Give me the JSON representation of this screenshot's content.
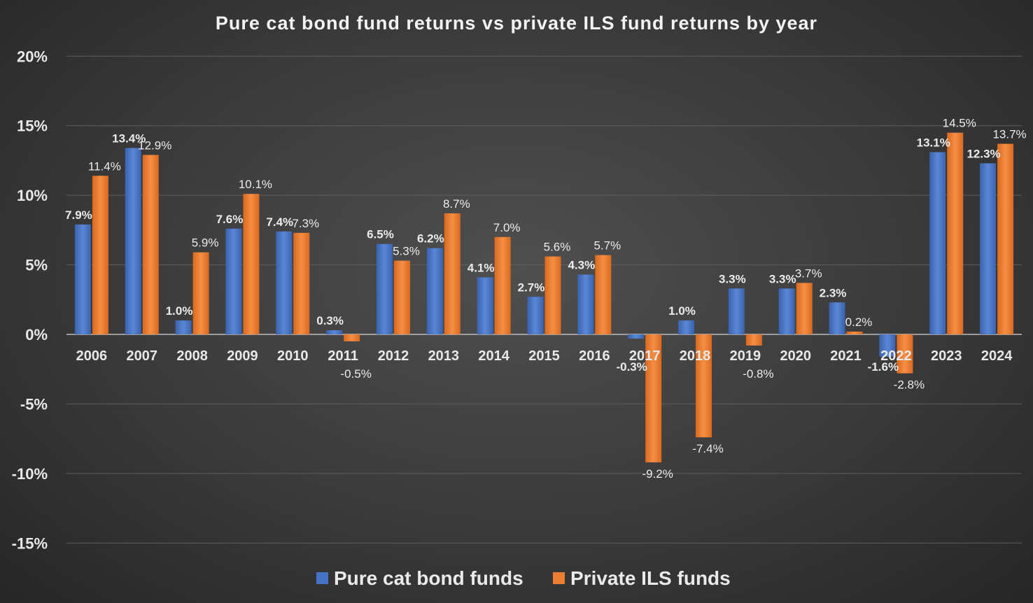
{
  "chart_data": {
    "type": "bar",
    "title": "Pure cat bond fund returns vs private ILS fund returns by year",
    "categories": [
      "2006",
      "2007",
      "2008",
      "2009",
      "2010",
      "2011",
      "2012",
      "2013",
      "2014",
      "2015",
      "2016",
      "2017",
      "2018",
      "2019",
      "2020",
      "2021",
      "2022",
      "2023",
      "2024"
    ],
    "series": [
      {
        "name": "Pure cat bond funds",
        "color": "#4472c4",
        "values": [
          7.9,
          13.4,
          1.0,
          7.6,
          7.4,
          0.3,
          6.5,
          6.2,
          4.1,
          2.7,
          4.3,
          -0.3,
          1.0,
          3.3,
          3.3,
          2.3,
          -1.6,
          13.1,
          12.3
        ]
      },
      {
        "name": "Private ILS funds",
        "color": "#ed7d31",
        "values": [
          11.4,
          12.9,
          5.9,
          10.1,
          7.3,
          -0.5,
          5.3,
          8.7,
          7.0,
          5.6,
          5.7,
          -9.2,
          -7.4,
          -0.8,
          3.7,
          0.2,
          -2.8,
          14.5,
          13.7
        ]
      }
    ],
    "ylim": [
      -15,
      20
    ],
    "yticks": [
      20,
      15,
      10,
      5,
      0,
      -5,
      -10,
      -15
    ],
    "ytick_labels": [
      "20%",
      "15%",
      "10%",
      "5%",
      "0%",
      "-5%",
      "-10%",
      "-15%"
    ],
    "value_format": "percent, 1 decimal",
    "grid": true,
    "legend": "bottom",
    "xlabel": "",
    "ylabel": ""
  }
}
